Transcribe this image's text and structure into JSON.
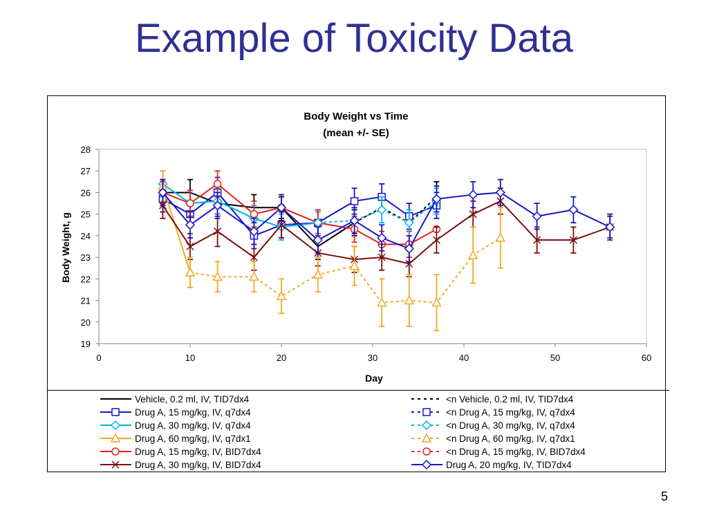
{
  "slide": {
    "title": "Example of Toxicity Data",
    "page_number": "5"
  },
  "chart_data": {
    "type": "line",
    "title": "Body Weight vs Time",
    "subtitle": "(mean +/- SE)",
    "xlabel": "Day",
    "ylabel": "Body Weight, g",
    "xlim": [
      0,
      60
    ],
    "ylim": [
      19,
      28
    ],
    "xticks": [
      0,
      10,
      20,
      30,
      40,
      50,
      60
    ],
    "yticks": [
      19,
      20,
      21,
      22,
      23,
      24,
      25,
      26,
      27,
      28
    ],
    "grid": false,
    "legend_placement": "bottom",
    "series": [
      {
        "name": "Vehicle, 0.2 ml, IV, TID7dx4",
        "color": "#000000",
        "marker": "none",
        "dashed": false,
        "x": [
          7,
          10,
          13,
          17,
          20,
          24,
          28
        ],
        "y": [
          26.0,
          26.0,
          25.5,
          25.3,
          25.3,
          23.5,
          24.6
        ],
        "err": [
          0.6,
          0.6,
          0.5,
          0.6,
          0.5,
          0.6,
          0.6
        ]
      },
      {
        "name": "Drug A, 15 mg/kg, IV, q7dx4",
        "color": "#1515c8",
        "marker": "square",
        "dashed": false,
        "x": [
          7,
          10,
          13,
          17,
          20,
          24,
          28,
          31,
          34,
          37
        ],
        "y": [
          25.7,
          25.0,
          26.0,
          24.0,
          24.5,
          24.6,
          25.6,
          25.8,
          24.9,
          25.4
        ],
        "err": [
          0.6,
          0.6,
          0.7,
          0.6,
          0.6,
          0.6,
          0.6,
          0.6,
          0.6,
          0.6
        ]
      },
      {
        "name": "Drug A, 30 mg/kg, IV, q7dx4",
        "color": "#00b4e6",
        "marker": "diamond",
        "dashed": false,
        "x": [
          7,
          10,
          13,
          17,
          20,
          24
        ],
        "y": [
          26.4,
          25.5,
          25.6,
          24.8,
          24.4,
          24.6
        ],
        "err": [
          0.6,
          0.6,
          0.6,
          0.6,
          0.6,
          0.5
        ]
      },
      {
        "name": "Drug A, 60 mg/kg, IV, q7dx1",
        "color": "#f5a623",
        "marker": "triangle",
        "dashed": false,
        "x": [
          7,
          10
        ],
        "y": [
          26.3,
          22.3
        ],
        "err": [
          0.7,
          0.7
        ]
      },
      {
        "name": "Drug A, 15 mg/kg, IV, BID7dx4",
        "color": "#e52020",
        "marker": "circle",
        "dashed": false,
        "x": [
          7,
          10,
          13,
          17,
          20,
          24,
          28,
          31,
          34,
          37
        ],
        "y": [
          26.0,
          25.5,
          26.4,
          25.0,
          25.3,
          24.6,
          24.3,
          23.6,
          23.6,
          24.3
        ],
        "err": [
          0.5,
          0.6,
          0.6,
          0.6,
          0.6,
          0.6,
          0.6,
          0.6,
          0.6,
          0.0
        ]
      },
      {
        "name": "Drug A, 30 mg/kg, IV, BID7dx4",
        "color": "#7a0d0d",
        "marker": "x",
        "dashed": false,
        "x": [
          7,
          10,
          13,
          17,
          20,
          24,
          28,
          31,
          34,
          37,
          41,
          44,
          48,
          52,
          56
        ],
        "y": [
          25.4,
          23.5,
          24.2,
          23.0,
          24.5,
          23.2,
          22.9,
          23.0,
          22.7,
          23.8,
          25.0,
          25.6,
          23.8,
          23.8,
          24.4
        ],
        "err": [
          0.6,
          0.6,
          0.7,
          0.6,
          0.6,
          0.6,
          0.6,
          0.6,
          0.6,
          0.6,
          0.6,
          0.6,
          0.6,
          0.6,
          0.5
        ]
      },
      {
        "name": "<n Vehicle, 0.2 ml, IV, TID7dx4",
        "color": "#000000",
        "marker": "none",
        "dashed": true,
        "x": [
          28,
          31,
          34,
          37
        ],
        "y": [
          24.6,
          25.3,
          24.6,
          25.8
        ],
        "err": [
          0,
          0,
          0,
          0.7
        ]
      },
      {
        "name": "<n Drug A, 15 mg/kg, IV, q7dx4",
        "color": "#1515c8",
        "marker": "square",
        "dashed": true,
        "x": [],
        "y": [],
        "err": []
      },
      {
        "name": "<n Drug A, 30 mg/kg, IV, q7dx4",
        "color": "#00b4e6",
        "marker": "diamond",
        "dashed": true,
        "x": [
          24,
          28,
          31,
          34,
          37
        ],
        "y": [
          24.6,
          24.7,
          25.2,
          24.6,
          25.6
        ],
        "err": [
          0,
          0,
          0.6,
          0.6,
          0.6
        ]
      },
      {
        "name": "<n Drug A, 60 mg/kg, IV, q7dx1",
        "color": "#f5a623",
        "marker": "triangle",
        "dashed": true,
        "x": [
          10,
          13,
          17,
          20,
          24,
          28,
          31,
          34,
          37,
          41,
          44
        ],
        "y": [
          22.3,
          22.1,
          22.1,
          21.2,
          22.2,
          22.6,
          20.9,
          21.0,
          20.9,
          23.1,
          23.9
        ],
        "err": [
          0.7,
          0.7,
          0.7,
          0.8,
          0.8,
          0.9,
          1.1,
          1.2,
          1.3,
          1.3,
          1.4
        ]
      },
      {
        "name": "<n Drug A, 15 mg/kg, IV, BID7dx4",
        "color": "#e52020",
        "marker": "circle",
        "dashed": true,
        "x": [],
        "y": [],
        "err": []
      },
      {
        "name": "Drug A, 20 mg/kg, IV, TID7dx4",
        "color": "#1515c8",
        "marker": "diamond",
        "dashed": false,
        "x": [
          7,
          10,
          13,
          17,
          20,
          24,
          28,
          31,
          34,
          37,
          41,
          44,
          48,
          52,
          56
        ],
        "y": [
          26.0,
          24.5,
          25.4,
          24.2,
          25.3,
          23.8,
          24.7,
          23.9,
          23.4,
          25.7,
          25.9,
          26.0,
          24.9,
          25.2,
          24.4
        ],
        "err": [
          0.6,
          0.6,
          0.6,
          0.6,
          0.6,
          0.6,
          0.6,
          0.6,
          0.6,
          0.6,
          0.6,
          0.6,
          0.6,
          0.6,
          0.6
        ]
      }
    ]
  }
}
